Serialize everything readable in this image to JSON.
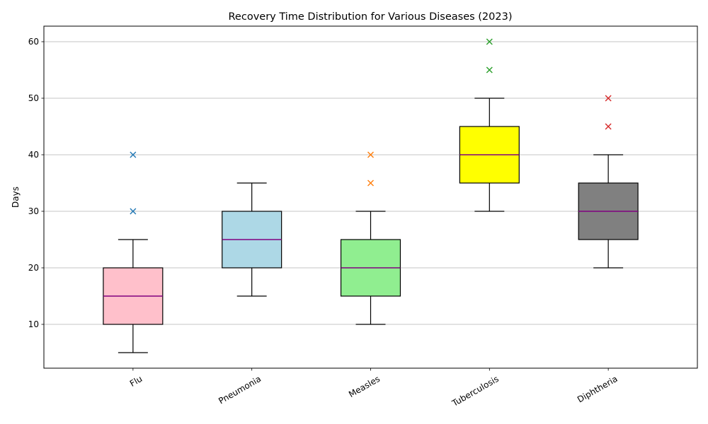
{
  "chart_data": {
    "type": "box",
    "title": "Recovery Time Distribution for Various Diseases (2023)",
    "xlabel": "",
    "ylabel": "Days",
    "ylim": [
      2.25,
      62.75
    ],
    "yticks": [
      10,
      20,
      30,
      40,
      50,
      60
    ],
    "grid": "y",
    "median_color": "#800080",
    "categories": [
      "Flu",
      "Pneumonia",
      "Measles",
      "Tuberculosis",
      "Diphtheria"
    ],
    "boxes": [
      {
        "category": "Flu",
        "whisker_low": 5,
        "q1": 10,
        "median": 15,
        "q3": 20,
        "whisker_high": 25,
        "outliers": [
          30,
          40
        ],
        "fill": "#ffc0cb",
        "outlier_color": "#1f77b4"
      },
      {
        "category": "Pneumonia",
        "whisker_low": 15,
        "q1": 20,
        "median": 25,
        "q3": 30,
        "whisker_high": 35,
        "outliers": [],
        "fill": "#add8e6",
        "outlier_color": "#ff7f0e"
      },
      {
        "category": "Measles",
        "whisker_low": 10,
        "q1": 15,
        "median": 20,
        "q3": 25,
        "whisker_high": 30,
        "outliers": [
          35,
          40
        ],
        "fill": "#90ee90",
        "outlier_color": "#ff7f0e"
      },
      {
        "category": "Tuberculosis",
        "whisker_low": 30,
        "q1": 35,
        "median": 40,
        "q3": 45,
        "whisker_high": 50,
        "outliers": [
          55,
          60
        ],
        "fill": "#ffff00",
        "outlier_color": "#2ca02c"
      },
      {
        "category": "Diphtheria",
        "whisker_low": 20,
        "q1": 25,
        "median": 30,
        "q3": 35,
        "whisker_high": 40,
        "outliers": [
          45,
          50
        ],
        "fill": "#808080",
        "outlier_color": "#d62728"
      }
    ]
  }
}
